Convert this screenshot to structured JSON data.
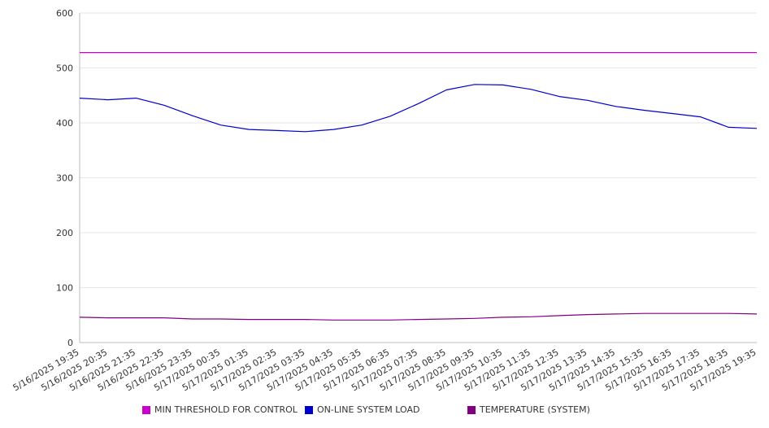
{
  "chart_data": {
    "type": "line",
    "title": "",
    "xlabel": "",
    "ylabel": "",
    "ylim": [
      0,
      600
    ],
    "yticks": [
      0,
      100,
      200,
      300,
      400,
      500,
      600
    ],
    "grid": true,
    "legend_position": "bottom",
    "categories": [
      "5/16/2025 19:35",
      "5/16/2025 20:35",
      "5/16/2025 21:35",
      "5/16/2025 22:35",
      "5/16/2025 23:35",
      "5/17/2025 00:35",
      "5/17/2025 01:35",
      "5/17/2025 02:35",
      "5/17/2025 03:35",
      "5/17/2025 04:35",
      "5/17/2025 05:35",
      "5/17/2025 06:35",
      "5/17/2025 07:35",
      "5/17/2025 08:35",
      "5/17/2025 09:35",
      "5/17/2025 10:35",
      "5/17/2025 11:35",
      "5/17/2025 12:35",
      "5/17/2025 13:35",
      "5/17/2025 14:35",
      "5/17/2025 15:35",
      "5/17/2025 16:35",
      "5/17/2025 17:35",
      "5/17/2025 18:35",
      "5/17/2025 19:35"
    ],
    "series": [
      {
        "name": "MIN THRESHOLD FOR CONTROL",
        "color": "#cc00cc",
        "values": [
          528,
          528,
          528,
          528,
          528,
          528,
          528,
          528,
          528,
          528,
          528,
          528,
          528,
          528,
          528,
          528,
          528,
          528,
          528,
          528,
          528,
          528,
          528,
          528,
          528
        ]
      },
      {
        "name": "ON-LINE SYSTEM LOAD",
        "color": "#0000cc",
        "values": [
          445,
          442,
          445,
          432,
          413,
          396,
          388,
          386,
          384,
          388,
          396,
          412,
          435,
          460,
          470,
          469,
          461,
          448,
          441,
          430,
          423,
          417,
          411,
          392,
          390
        ]
      },
      {
        "name": "TEMPERATURE (SYSTEM)",
        "color": "#800080",
        "values": [
          46,
          45,
          45,
          45,
          43,
          43,
          42,
          42,
          42,
          41,
          41,
          41,
          42,
          43,
          44,
          46,
          47,
          49,
          51,
          52,
          53,
          53,
          53,
          53,
          52
        ]
      }
    ]
  }
}
